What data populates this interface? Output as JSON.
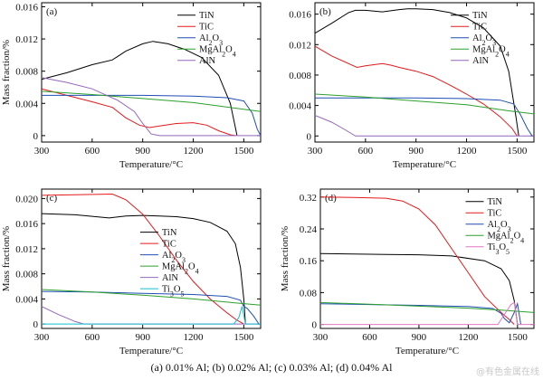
{
  "caption": "(a) 0.01% Al; (b) 0.02% Al; (c) 0.03% Al; (d) 0.04% Al",
  "watermark": "@有色金属在线",
  "chart_data": [
    {
      "panel": "(a)",
      "type": "line",
      "xlabel": "Temperature/°C",
      "ylabel": "Mass fraction/%",
      "xlim": [
        300,
        1600
      ],
      "ylim": [
        -0.0008,
        0.0165
      ],
      "xticks": [
        300,
        600,
        900,
        1200,
        1500
      ],
      "yticks": [
        0,
        0.004,
        0.008,
        0.012,
        0.016
      ],
      "ytick_labels": [
        "0",
        "0.004",
        "0.008",
        "0.012",
        "0.016"
      ],
      "legend_position": "top-right",
      "series": [
        {
          "name": "TiN",
          "color": "#000000",
          "x": [
            300,
            450,
            600,
            720,
            800,
            900,
            960,
            1050,
            1150,
            1250,
            1350,
            1420,
            1450,
            1460
          ],
          "y": [
            0.007,
            0.0078,
            0.0088,
            0.0094,
            0.0105,
            0.0114,
            0.0117,
            0.0114,
            0.0107,
            0.0097,
            0.0075,
            0.004,
            0.001,
            0
          ]
        },
        {
          "name": "TiC",
          "color": "#e41a1c",
          "x": [
            300,
            450,
            600,
            720,
            800,
            880,
            940,
            1000,
            1100,
            1200,
            1280,
            1350,
            1420,
            1450
          ],
          "y": [
            0.0058,
            0.005,
            0.0042,
            0.0035,
            0.0022,
            0.0013,
            0.001,
            0.0012,
            0.0015,
            0.0016,
            0.0013,
            0.0006,
            0.0001,
            0
          ]
        },
        {
          "name": "Al2O3",
          "color": "#1f4fb4",
          "x": [
            300,
            600,
            900,
            1200,
            1400,
            1500,
            1550,
            1580,
            1600
          ],
          "y": [
            0.005,
            0.005,
            0.005,
            0.0049,
            0.0047,
            0.0043,
            0.0028,
            0.0008,
            0
          ]
        },
        {
          "name": "MgAl2O4",
          "color": "#2ca02c",
          "x": [
            300,
            600,
            900,
            1200,
            1600
          ],
          "y": [
            0.0055,
            0.0051,
            0.0046,
            0.0041,
            0.003
          ]
        },
        {
          "name": "AlN",
          "color": "#9467bd",
          "x": [
            300,
            450,
            600,
            750,
            850,
            900,
            950,
            1000,
            1600
          ],
          "y": [
            0.0072,
            0.0066,
            0.0058,
            0.0044,
            0.003,
            0.0015,
            0.0002,
            0,
            0
          ]
        }
      ]
    },
    {
      "panel": "(b)",
      "type": "line",
      "xlabel": "Temperature/°C",
      "ylabel": "",
      "xlim": [
        300,
        1600
      ],
      "ylim": [
        -0.0008,
        0.0175
      ],
      "xticks": [
        300,
        600,
        900,
        1200,
        1500
      ],
      "yticks": [
        0,
        0.004,
        0.008,
        0.012,
        0.016
      ],
      "ytick_labels": [
        "0",
        "0.004",
        "0.008",
        "0.012",
        "0.016"
      ],
      "legend_position": "top-right",
      "series": [
        {
          "name": "TiN",
          "color": "#000000",
          "x": [
            300,
            400,
            500,
            540,
            600,
            700,
            800,
            850,
            900,
            1000,
            1100,
            1200,
            1300,
            1400,
            1450,
            1490,
            1510
          ],
          "y": [
            0.0135,
            0.0148,
            0.0162,
            0.0165,
            0.0165,
            0.0163,
            0.0166,
            0.0167,
            0.0167,
            0.0166,
            0.0162,
            0.0155,
            0.0142,
            0.0118,
            0.0085,
            0.003,
            0
          ]
        },
        {
          "name": "TiC",
          "color": "#e41a1c",
          "x": [
            300,
            400,
            500,
            550,
            600,
            700,
            750,
            800,
            900,
            1000,
            1100,
            1200,
            1300,
            1400,
            1470,
            1500
          ],
          "y": [
            0.0118,
            0.0105,
            0.0095,
            0.009,
            0.0092,
            0.0095,
            0.0093,
            0.009,
            0.0085,
            0.0078,
            0.0067,
            0.0055,
            0.0042,
            0.0025,
            0.001,
            0
          ]
        },
        {
          "name": "Al2O3",
          "color": "#1f4fb4",
          "x": [
            300,
            600,
            900,
            1200,
            1400,
            1480,
            1520,
            1560,
            1590
          ],
          "y": [
            0.005,
            0.005,
            0.005,
            0.0049,
            0.0047,
            0.0042,
            0.0028,
            0.001,
            0
          ]
        },
        {
          "name": "MgAl2O4",
          "color": "#2ca02c",
          "x": [
            300,
            600,
            900,
            1200,
            1450,
            1600
          ],
          "y": [
            0.0055,
            0.0051,
            0.0046,
            0.0041,
            0.0033,
            0.0029
          ]
        },
        {
          "name": "AlN",
          "color": "#9467bd",
          "x": [
            300,
            400,
            480,
            540,
            600,
            1600
          ],
          "y": [
            0.0027,
            0.0018,
            0.0008,
            0,
            0,
            0
          ]
        }
      ]
    },
    {
      "panel": "(c)",
      "type": "line",
      "xlabel": "Temperature/°C",
      "ylabel": "Mass fraction/%",
      "xlim": [
        300,
        1600
      ],
      "ylim": [
        -0.0007,
        0.0215
      ],
      "xticks": [
        300,
        600,
        900,
        1200,
        1500
      ],
      "yticks": [
        0,
        0.004,
        0.008,
        0.012,
        0.016,
        0.02
      ],
      "ytick_labels": [
        "0",
        "0.004",
        "0.008",
        "0.012",
        "0.016",
        "0.020"
      ],
      "legend_position": "center-right",
      "series": [
        {
          "name": "TiN",
          "color": "#000000",
          "x": [
            300,
            500,
            700,
            800,
            900,
            1000,
            1100,
            1200,
            1300,
            1400,
            1450,
            1480,
            1500,
            1510
          ],
          "y": [
            0.0176,
            0.0174,
            0.0169,
            0.0172,
            0.0173,
            0.0172,
            0.0171,
            0.0168,
            0.0162,
            0.0148,
            0.0128,
            0.009,
            0.004,
            0
          ]
        },
        {
          "name": "TiC",
          "color": "#e41a1c",
          "x": [
            300,
            500,
            720,
            800,
            900,
            1000,
            1100,
            1200,
            1300,
            1400,
            1460,
            1500
          ],
          "y": [
            0.0205,
            0.0206,
            0.0207,
            0.0198,
            0.0175,
            0.014,
            0.0102,
            0.0068,
            0.004,
            0.0018,
            0.0006,
            0
          ]
        },
        {
          "name": "Al2O3",
          "color": "#1f4fb4",
          "x": [
            300,
            600,
            900,
            1200,
            1400,
            1480,
            1500,
            1520,
            1560,
            1590
          ],
          "y": [
            0.0052,
            0.0051,
            0.0049,
            0.0047,
            0.0044,
            0.0038,
            0.0028,
            0.0025,
            0.0012,
            0
          ]
        },
        {
          "name": "MgAl2O4",
          "color": "#2ca02c",
          "x": [
            300,
            600,
            900,
            1200,
            1400,
            1600
          ],
          "y": [
            0.0055,
            0.0051,
            0.0046,
            0.004,
            0.0035,
            0.003
          ]
        },
        {
          "name": "AlN",
          "color": "#9467bd",
          "x": [
            300,
            400,
            500,
            550,
            1600
          ],
          "y": [
            0.0028,
            0.0015,
            0.0004,
            0,
            0
          ]
        },
        {
          "name": "Ti3O5",
          "color": "#17becf",
          "x": [
            300,
            1440,
            1470,
            1490,
            1510,
            1600
          ],
          "y": [
            0,
            0,
            0.001,
            0.0028,
            0,
            0
          ]
        }
      ]
    },
    {
      "panel": "(d)",
      "type": "line",
      "xlabel": "Temperature/°C",
      "ylabel": "Mass fraction/%",
      "xlim": [
        300,
        1600
      ],
      "ylim": [
        -0.01,
        0.34
      ],
      "xticks": [
        300,
        600,
        900,
        1200,
        1500
      ],
      "yticks": [
        0,
        0.08,
        0.16,
        0.24,
        0.32
      ],
      "ytick_labels": [
        "0",
        "0.08",
        "0.16",
        "0.24",
        "0.32"
      ],
      "legend_position": "top-right",
      "series": [
        {
          "name": "TiN",
          "color": "#000000",
          "x": [
            300,
            500,
            700,
            900,
            1100,
            1300,
            1400,
            1450,
            1480,
            1500
          ],
          "y": [
            0.178,
            0.177,
            0.176,
            0.175,
            0.172,
            0.16,
            0.14,
            0.11,
            0.06,
            0
          ]
        },
        {
          "name": "TiC",
          "color": "#e41a1c",
          "x": [
            300,
            500,
            700,
            800,
            900,
            1000,
            1100,
            1200,
            1300,
            1400,
            1450,
            1480
          ],
          "y": [
            0.32,
            0.319,
            0.317,
            0.31,
            0.29,
            0.25,
            0.19,
            0.13,
            0.07,
            0.03,
            0.012,
            0
          ]
        },
        {
          "name": "Al2O3",
          "color": "#1f4fb4",
          "x": [
            300,
            600,
            900,
            1200,
            1350,
            1400,
            1420,
            1450,
            1480,
            1500,
            1520
          ],
          "y": [
            0.052,
            0.05,
            0.048,
            0.045,
            0.04,
            0.028,
            0.015,
            0.004,
            0.03,
            0.052,
            0
          ]
        },
        {
          "name": "MgAl2O4",
          "color": "#2ca02c",
          "x": [
            300,
            600,
            900,
            1200,
            1400,
            1600
          ],
          "y": [
            0.055,
            0.051,
            0.046,
            0.041,
            0.036,
            0.03
          ]
        },
        {
          "name": "Ti3O5",
          "color": "#e377c2",
          "x": [
            300,
            1380,
            1420,
            1460,
            1480,
            1500,
            1600
          ],
          "y": [
            0,
            0,
            0.025,
            0.05,
            0.055,
            0,
            0
          ]
        }
      ]
    }
  ]
}
